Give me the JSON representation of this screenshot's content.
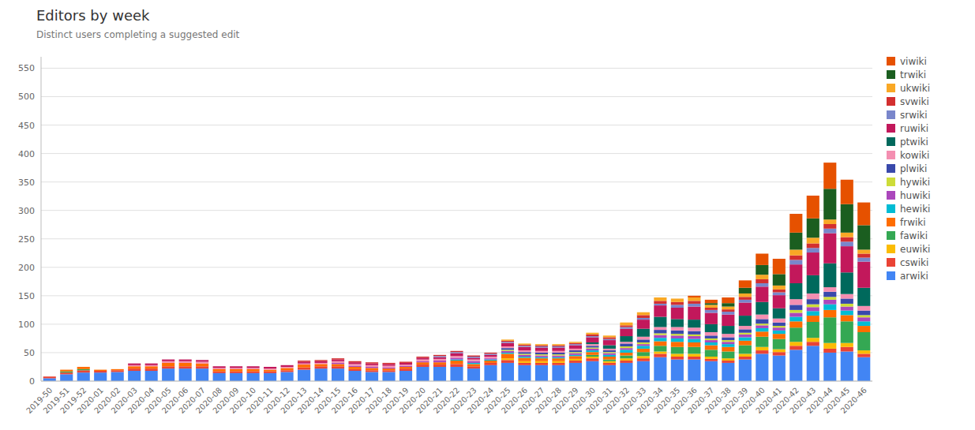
{
  "chart_data": {
    "type": "bar",
    "stacked": true,
    "grid": true,
    "legend": "right",
    "title": "Editors by week",
    "subtitle": "Distinct users completing a suggested edit",
    "categories": [
      "2019-50",
      "2019-51",
      "2019-52",
      "2020-01",
      "2020-02",
      "2020-03",
      "2020-04",
      "2020-05",
      "2020-06",
      "2020-07",
      "2020-08",
      "2020-09",
      "2020-10",
      "2020-11",
      "2020-12",
      "2020-13",
      "2020-14",
      "2020-15",
      "2020-16",
      "2020-17",
      "2020-18",
      "2020-19",
      "2020-20",
      "2020-21",
      "2020-22",
      "2020-23",
      "2020-24",
      "2020-25",
      "2020-26",
      "2020-27",
      "2020-28",
      "2020-29",
      "2020-30",
      "2020-31",
      "2020-32",
      "2020-33",
      "2020-34",
      "2020-35",
      "2020-36",
      "2020-37",
      "2020-38",
      "2020-39",
      "2020-40",
      "2020-41",
      "2020-42",
      "2020-43",
      "2020-44",
      "2020-45",
      "2020-46"
    ],
    "ylim": [
      0,
      570
    ],
    "yticks": [
      0,
      50,
      100,
      150,
      200,
      250,
      300,
      350,
      400,
      450,
      500,
      550
    ],
    "series": [
      {
        "name": "arwiki",
        "color": "#4285F4",
        "values": [
          5,
          12,
          15,
          15,
          16,
          18,
          18,
          22,
          22,
          22,
          14,
          14,
          14,
          14,
          16,
          20,
          22,
          22,
          18,
          16,
          16,
          18,
          25,
          25,
          25,
          22,
          28,
          32,
          28,
          28,
          28,
          32,
          35,
          28,
          32,
          35,
          42,
          38,
          38,
          35,
          32,
          38,
          48,
          45,
          55,
          62,
          50,
          52,
          42
        ]
      },
      {
        "name": "cswiki",
        "color": "#EA4335",
        "values": [
          3,
          3,
          4,
          3,
          3,
          4,
          4,
          4,
          4,
          4,
          3,
          3,
          3,
          3,
          3,
          4,
          4,
          4,
          3,
          3,
          3,
          4,
          4,
          4,
          5,
          4,
          4,
          5,
          4,
          4,
          4,
          4,
          5,
          4,
          4,
          5,
          6,
          5,
          5,
          4,
          4,
          5,
          6,
          6,
          7,
          7,
          7,
          8,
          6
        ]
      },
      {
        "name": "euwiki",
        "color": "#FBBC04",
        "values": [
          0,
          0,
          0,
          0,
          0,
          0,
          0,
          0,
          0,
          0,
          0,
          0,
          0,
          0,
          0,
          0,
          0,
          0,
          0,
          0,
          0,
          0,
          0,
          0,
          0,
          0,
          0,
          3,
          3,
          3,
          3,
          3,
          3,
          3,
          4,
          4,
          4,
          5,
          5,
          4,
          4,
          5,
          6,
          5,
          7,
          7,
          10,
          7,
          6
        ]
      },
      {
        "name": "fawiki",
        "color": "#34A853",
        "values": [
          0,
          2,
          2,
          0,
          0,
          0,
          0,
          0,
          0,
          0,
          0,
          0,
          0,
          0,
          0,
          0,
          0,
          0,
          0,
          0,
          0,
          0,
          0,
          0,
          0,
          0,
          0,
          0,
          0,
          0,
          0,
          0,
          3,
          3,
          5,
          7,
          10,
          12,
          12,
          12,
          12,
          15,
          18,
          18,
          25,
          28,
          45,
          38,
          32
        ]
      },
      {
        "name": "frwiki",
        "color": "#FF6D00",
        "values": [
          0,
          3,
          4,
          2,
          2,
          4,
          4,
          6,
          6,
          5,
          4,
          4,
          4,
          3,
          4,
          5,
          4,
          4,
          4,
          4,
          3,
          3,
          4,
          4,
          6,
          4,
          4,
          8,
          6,
          5,
          5,
          5,
          5,
          5,
          5,
          6,
          8,
          9,
          8,
          8,
          8,
          8,
          9,
          9,
          11,
          11,
          13,
          11,
          11
        ]
      },
      {
        "name": "hewiki",
        "color": "#00BCD4",
        "values": [
          0,
          0,
          0,
          0,
          0,
          0,
          0,
          0,
          0,
          0,
          0,
          0,
          0,
          0,
          0,
          0,
          0,
          0,
          0,
          0,
          0,
          0,
          0,
          0,
          2,
          2,
          2,
          2,
          2,
          2,
          2,
          2,
          3,
          3,
          5,
          5,
          6,
          6,
          6,
          5,
          5,
          6,
          6,
          6,
          8,
          8,
          10,
          8,
          8
        ]
      },
      {
        "name": "huwiki",
        "color": "#AB47BC",
        "values": [
          0,
          0,
          0,
          0,
          0,
          0,
          0,
          0,
          0,
          0,
          0,
          0,
          0,
          0,
          0,
          0,
          0,
          2,
          2,
          2,
          2,
          2,
          2,
          3,
          3,
          3,
          2,
          3,
          3,
          3,
          3,
          3,
          3,
          3,
          3,
          3,
          5,
          5,
          5,
          4,
          4,
          5,
          5,
          5,
          7,
          7,
          8,
          7,
          7
        ]
      },
      {
        "name": "hywiki",
        "color": "#CDDC39",
        "values": [
          0,
          0,
          0,
          0,
          0,
          0,
          0,
          0,
          0,
          0,
          0,
          0,
          0,
          0,
          0,
          0,
          0,
          0,
          0,
          0,
          0,
          0,
          0,
          0,
          0,
          0,
          0,
          2,
          2,
          2,
          2,
          2,
          2,
          2,
          3,
          3,
          3,
          3,
          3,
          3,
          3,
          3,
          3,
          3,
          5,
          5,
          5,
          5,
          4
        ]
      },
      {
        "name": "plwiki",
        "color": "#3949AB",
        "values": [
          0,
          0,
          0,
          0,
          0,
          0,
          0,
          0,
          0,
          0,
          0,
          0,
          0,
          0,
          0,
          0,
          0,
          0,
          0,
          0,
          0,
          0,
          0,
          0,
          0,
          0,
          0,
          3,
          3,
          3,
          3,
          3,
          3,
          3,
          5,
          5,
          6,
          6,
          6,
          5,
          5,
          6,
          8,
          6,
          9,
          9,
          9,
          9,
          8
        ]
      },
      {
        "name": "kowiki",
        "color": "#F48FB1",
        "values": [
          0,
          0,
          0,
          0,
          0,
          2,
          2,
          3,
          3,
          3,
          2,
          2,
          2,
          2,
          2,
          2,
          2,
          3,
          3,
          3,
          3,
          2,
          3,
          3,
          3,
          3,
          3,
          3,
          3,
          3,
          3,
          3,
          3,
          3,
          3,
          5,
          5,
          6,
          6,
          6,
          6,
          6,
          8,
          7,
          10,
          10,
          8,
          8,
          8
        ]
      },
      {
        "name": "ptwiki",
        "color": "#00695C",
        "values": [
          0,
          0,
          0,
          0,
          0,
          0,
          0,
          0,
          0,
          0,
          0,
          0,
          0,
          0,
          0,
          0,
          0,
          0,
          0,
          0,
          0,
          0,
          0,
          0,
          0,
          0,
          0,
          0,
          0,
          0,
          0,
          0,
          3,
          6,
          10,
          14,
          18,
          14,
          14,
          14,
          14,
          18,
          22,
          18,
          28,
          32,
          42,
          38,
          32
        ]
      },
      {
        "name": "ruwiki",
        "color": "#C2185B",
        "values": [
          0,
          0,
          0,
          0,
          0,
          3,
          3,
          3,
          3,
          3,
          3,
          3,
          3,
          3,
          3,
          3,
          3,
          3,
          3,
          3,
          3,
          3,
          3,
          3,
          5,
          3,
          3,
          6,
          6,
          6,
          6,
          6,
          9,
          9,
          13,
          16,
          20,
          20,
          23,
          20,
          20,
          23,
          27,
          23,
          33,
          40,
          53,
          46,
          46
        ]
      },
      {
        "name": "srwiki",
        "color": "#7986CB",
        "values": [
          0,
          0,
          0,
          0,
          0,
          0,
          0,
          0,
          0,
          0,
          0,
          0,
          0,
          0,
          0,
          0,
          0,
          0,
          0,
          0,
          0,
          0,
          0,
          2,
          2,
          2,
          2,
          2,
          2,
          2,
          2,
          2,
          2,
          2,
          3,
          3,
          3,
          5,
          5,
          5,
          5,
          5,
          6,
          5,
          8,
          8,
          8,
          8,
          7
        ]
      },
      {
        "name": "svwiki",
        "color": "#D32F2F",
        "values": [
          0,
          0,
          0,
          0,
          0,
          0,
          0,
          0,
          0,
          0,
          0,
          0,
          0,
          0,
          0,
          2,
          2,
          2,
          2,
          2,
          2,
          2,
          2,
          2,
          2,
          2,
          2,
          2,
          2,
          2,
          2,
          2,
          3,
          3,
          3,
          5,
          5,
          5,
          5,
          4,
          4,
          5,
          7,
          5,
          8,
          8,
          8,
          8,
          7
        ]
      },
      {
        "name": "ukwiki",
        "color": "#F9A825",
        "values": [
          0,
          0,
          0,
          0,
          0,
          0,
          0,
          0,
          0,
          0,
          0,
          0,
          0,
          0,
          0,
          0,
          0,
          0,
          0,
          0,
          0,
          0,
          0,
          0,
          0,
          0,
          0,
          2,
          2,
          2,
          2,
          2,
          3,
          3,
          5,
          5,
          6,
          6,
          6,
          5,
          5,
          6,
          8,
          7,
          10,
          10,
          8,
          8,
          7
        ]
      },
      {
        "name": "trwiki",
        "color": "#1B5E20",
        "values": [
          0,
          0,
          0,
          0,
          0,
          0,
          0,
          0,
          0,
          0,
          0,
          0,
          0,
          0,
          0,
          0,
          0,
          0,
          0,
          0,
          0,
          0,
          0,
          0,
          0,
          0,
          0,
          0,
          0,
          0,
          0,
          0,
          0,
          0,
          0,
          0,
          0,
          0,
          0,
          3,
          6,
          10,
          17,
          20,
          30,
          34,
          54,
          50,
          43
        ]
      },
      {
        "name": "viwiki",
        "color": "#E65100",
        "values": [
          0,
          0,
          0,
          0,
          0,
          0,
          0,
          0,
          0,
          0,
          0,
          0,
          0,
          0,
          0,
          0,
          0,
          0,
          0,
          0,
          0,
          0,
          0,
          0,
          0,
          0,
          0,
          0,
          0,
          0,
          0,
          0,
          0,
          0,
          0,
          0,
          0,
          0,
          3,
          6,
          10,
          13,
          20,
          27,
          33,
          40,
          46,
          43,
          40
        ]
      }
    ]
  }
}
